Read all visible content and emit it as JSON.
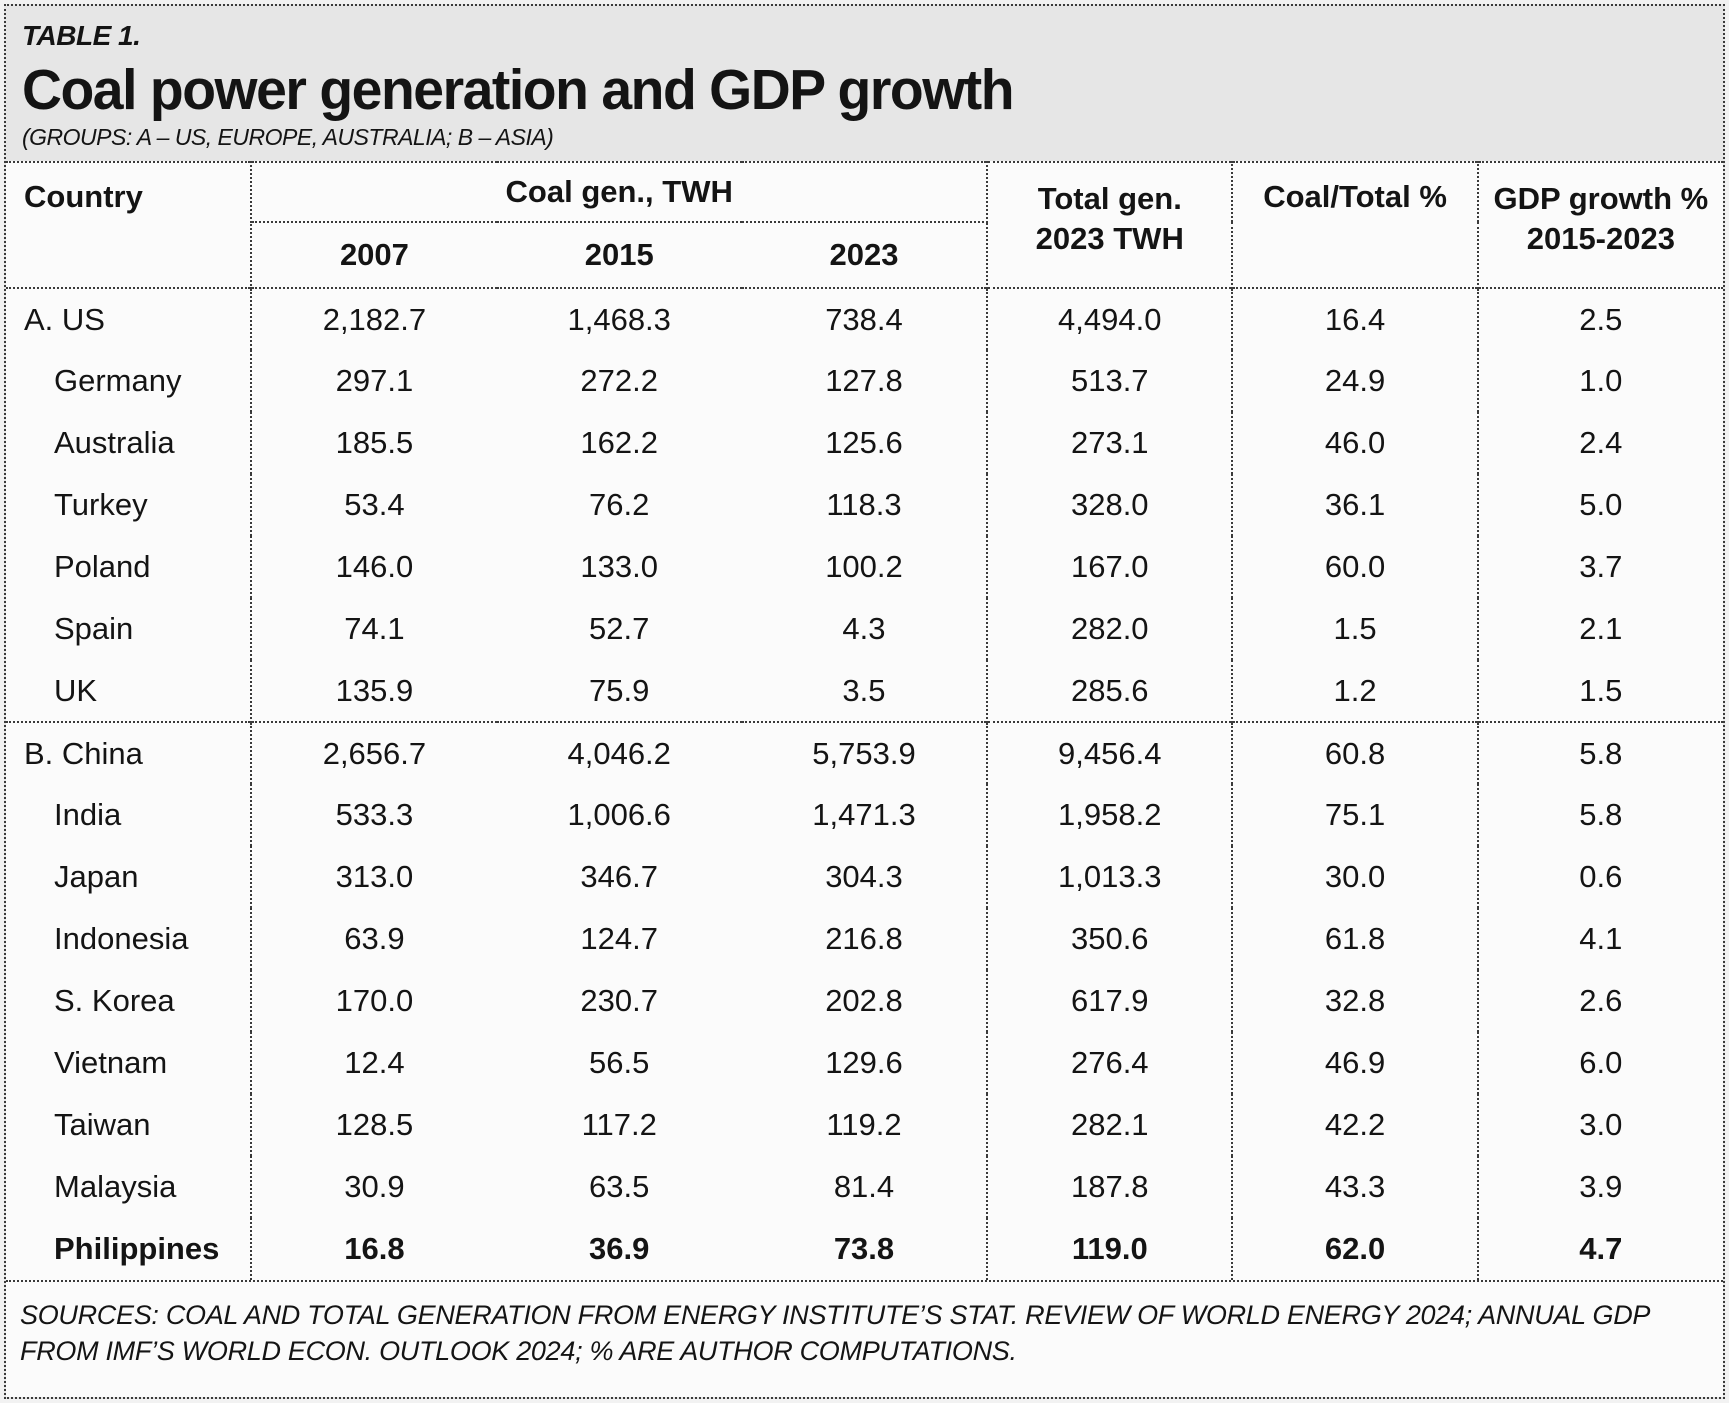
{
  "table_label": "TABLE 1.",
  "title": "Coal power generation and GDP growth",
  "subtitle": "(GROUPS: A – US, EUROPE, AUSTRALIA; B – ASIA)",
  "chart_data": {
    "type": "table",
    "columns": [
      "Country",
      "Coal gen. 2007 TWH",
      "Coal gen. 2015 TWH",
      "Coal gen. 2023 TWH",
      "Total gen. 2023 TWH",
      "Coal/Total %",
      "GDP growth % 2015-2023"
    ],
    "header": {
      "country": "Country",
      "coal_group": "Coal gen., TWH",
      "years": [
        "2007",
        "2015",
        "2023"
      ],
      "total_gen": [
        "Total gen.",
        "2023 TWH"
      ],
      "coal_share": "Coal/Total %",
      "gdp_growth": [
        "GDP growth %",
        "2015-2023"
      ]
    },
    "rows": [
      {
        "country": "A. US",
        "indent": false,
        "bold": false,
        "group_start": true,
        "values": [
          "2,182.7",
          "1,468.3",
          "738.4",
          "4,494.0",
          "16.4",
          "2.5"
        ]
      },
      {
        "country": "Germany",
        "indent": true,
        "bold": false,
        "group_start": false,
        "values": [
          "297.1",
          "272.2",
          "127.8",
          "513.7",
          "24.9",
          "1.0"
        ]
      },
      {
        "country": "Australia",
        "indent": true,
        "bold": false,
        "group_start": false,
        "values": [
          "185.5",
          "162.2",
          "125.6",
          "273.1",
          "46.0",
          "2.4"
        ]
      },
      {
        "country": "Turkey",
        "indent": true,
        "bold": false,
        "group_start": false,
        "values": [
          "53.4",
          "76.2",
          "118.3",
          "328.0",
          "36.1",
          "5.0"
        ]
      },
      {
        "country": "Poland",
        "indent": true,
        "bold": false,
        "group_start": false,
        "values": [
          "146.0",
          "133.0",
          "100.2",
          "167.0",
          "60.0",
          "3.7"
        ]
      },
      {
        "country": "Spain",
        "indent": true,
        "bold": false,
        "group_start": false,
        "values": [
          "74.1",
          "52.7",
          "4.3",
          "282.0",
          "1.5",
          "2.1"
        ]
      },
      {
        "country": "UK",
        "indent": true,
        "bold": false,
        "group_start": false,
        "values": [
          "135.9",
          "75.9",
          "3.5",
          "285.6",
          "1.2",
          "1.5"
        ]
      },
      {
        "country": "B. China",
        "indent": false,
        "bold": false,
        "group_start": true,
        "values": [
          "2,656.7",
          "4,046.2",
          "5,753.9",
          "9,456.4",
          "60.8",
          "5.8"
        ]
      },
      {
        "country": "India",
        "indent": true,
        "bold": false,
        "group_start": false,
        "values": [
          "533.3",
          "1,006.6",
          "1,471.3",
          "1,958.2",
          "75.1",
          "5.8"
        ]
      },
      {
        "country": "Japan",
        "indent": true,
        "bold": false,
        "group_start": false,
        "values": [
          "313.0",
          "346.7",
          "304.3",
          "1,013.3",
          "30.0",
          "0.6"
        ]
      },
      {
        "country": "Indonesia",
        "indent": true,
        "bold": false,
        "group_start": false,
        "values": [
          "63.9",
          "124.7",
          "216.8",
          "350.6",
          "61.8",
          "4.1"
        ]
      },
      {
        "country": "S. Korea",
        "indent": true,
        "bold": false,
        "group_start": false,
        "values": [
          "170.0",
          "230.7",
          "202.8",
          "617.9",
          "32.8",
          "2.6"
        ]
      },
      {
        "country": "Vietnam",
        "indent": true,
        "bold": false,
        "group_start": false,
        "values": [
          "12.4",
          "56.5",
          "129.6",
          "276.4",
          "46.9",
          "6.0"
        ]
      },
      {
        "country": "Taiwan",
        "indent": true,
        "bold": false,
        "group_start": false,
        "values": [
          "128.5",
          "117.2",
          "119.2",
          "282.1",
          "42.2",
          "3.0"
        ]
      },
      {
        "country": "Malaysia",
        "indent": true,
        "bold": false,
        "group_start": false,
        "values": [
          "30.9",
          "63.5",
          "81.4",
          "187.8",
          "43.3",
          "3.9"
        ]
      },
      {
        "country": "Philippines",
        "indent": true,
        "bold": true,
        "group_start": false,
        "values": [
          "16.8",
          "36.9",
          "73.8",
          "119.0",
          "62.0",
          "4.7"
        ]
      }
    ]
  },
  "sources": "SOURCES: COAL AND TOTAL GENERATION FROM ENERGY INSTITUTE’S STAT. REVIEW OF WORLD ENERGY 2024; ANNUAL GDP FROM IMF’S WORLD ECON. OUTLOOK 2024; % ARE AUTHOR COMPUTATIONS.",
  "colors": {
    "text": "#141414",
    "band_background": "#e6e6e6",
    "cell_background": "#fbfbfb",
    "border": "#3a3a3a"
  }
}
